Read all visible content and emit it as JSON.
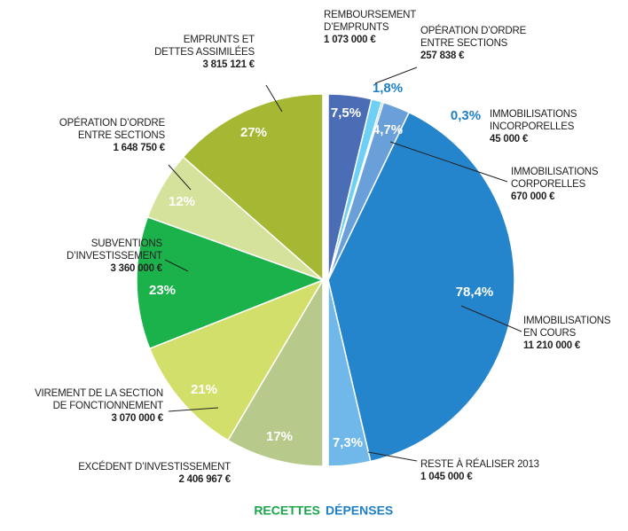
{
  "chart_data": [
    {
      "type": "half-pie",
      "name": "RECETTES",
      "color": "#1aa64a",
      "side": "left",
      "categories": [
        "EMPRUNTS ET\nDETTES ASSIMILÉES",
        "OPÉRATION D’ORDRE\nENTRE SECTIONS",
        "SUBVENTIONS\nD’INVESTISSEMENT",
        "VIREMENT DE LA SECTION\nDE FONCTIONNEMENT",
        "EXCÉDENT D’INVESTISSEMENT"
      ],
      "values": [
        27,
        12,
        23,
        21,
        17
      ],
      "value_labels": [
        "27%",
        "12%",
        "23%",
        "21%",
        "17%"
      ],
      "amount_labels": [
        "3 815 121 €",
        "1 648 750 €",
        "3 360 000 €",
        "3 070 000 €",
        "2 406 967 €"
      ],
      "colors": [
        "#a6b733",
        "#d5e29c",
        "#1cb24b",
        "#d3df6b",
        "#b7ca8b"
      ]
    },
    {
      "type": "half-pie",
      "name": "DÉPENSES",
      "color": "#1f7fc6",
      "side": "right",
      "categories": [
        "REMBOURSEMENT\nD’EMPRUNTS",
        "OPÉRATION D’ORDRE\nENTRE SECTIONS",
        "IMMOBILISATIONS\nINCORPORELLES",
        "IMMOBILISATIONS\nCORPORELLES",
        "IMMOBILISATIONS\nEN COURS",
        "RESTE À RÉALISER 2013"
      ],
      "values": [
        7.5,
        1.8,
        0.3,
        4.7,
        78.4,
        7.3
      ],
      "value_labels": [
        "7,5%",
        "1,8%",
        "0,3%",
        "4,7%",
        "78,4%",
        "7,3%"
      ],
      "amount_labels": [
        "1 073 000 €",
        "257 838 €",
        "45 000 €",
        "670 000 €",
        "11 210 000 €",
        "1 045 000 €"
      ],
      "colors": [
        "#4b6db6",
        "#6fd0f5",
        "#3d8fd6",
        "#6aa0d9",
        "#2585cc",
        "#6fb8e9"
      ]
    }
  ]
}
